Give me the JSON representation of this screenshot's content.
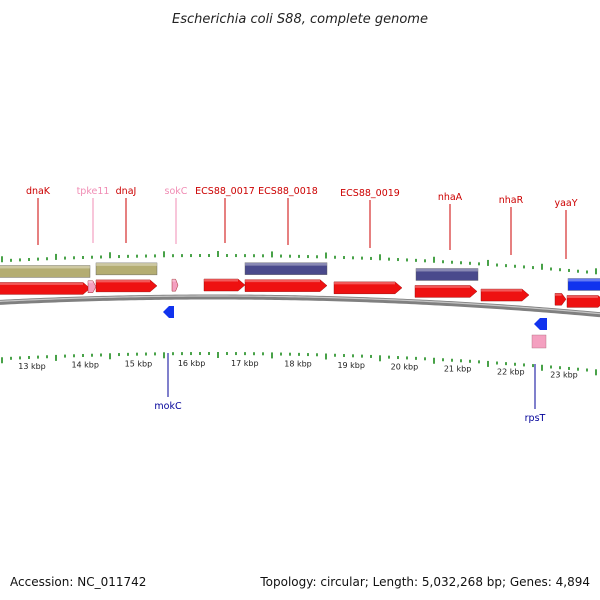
{
  "title": "Escherichia coli S88, complete genome",
  "footer": {
    "accession": "Accession: NC_011742",
    "summary": "Topology: circular; Length: 5,032,268 bp; Genes: 4,894"
  },
  "colors": {
    "forward_cds": "#ee1111",
    "reverse_cds": "#1133ee",
    "forward_gene": "#b4ad72",
    "reverse_gene": "#4a4a8c",
    "rna_feature": "#f4a0c0",
    "label_forward": "#cc0000",
    "label_rna": "#f08cb4",
    "label_reverse": "#000099",
    "tick": "#1a8a1a",
    "backbone": "#808080"
  },
  "kbp_ticks": [
    {
      "label": "13 kbp"
    },
    {
      "label": "14 kbp"
    },
    {
      "label": "15 kbp"
    },
    {
      "label": "16 kbp"
    },
    {
      "label": "17 kbp"
    },
    {
      "label": "18 kbp"
    },
    {
      "label": "19 kbp"
    },
    {
      "label": "20 kbp"
    },
    {
      "label": "21 kbp"
    },
    {
      "label": "22 kbp"
    },
    {
      "label": "23 kbp"
    }
  ],
  "gene_labels_top": [
    {
      "text": "dnaK",
      "kind": "forward"
    },
    {
      "text": "tpke11",
      "kind": "rna"
    },
    {
      "text": "dnaJ",
      "kind": "forward"
    },
    {
      "text": "sokC",
      "kind": "rna"
    },
    {
      "text": "ECS88_0017",
      "kind": "forward"
    },
    {
      "text": "ECS88_0018",
      "kind": "forward"
    },
    {
      "text": "ECS88_0019",
      "kind": "forward"
    },
    {
      "text": "nhaA",
      "kind": "forward"
    },
    {
      "text": "nhaR",
      "kind": "forward"
    },
    {
      "text": "yaaY",
      "kind": "forward"
    }
  ],
  "gene_labels_bottom": [
    {
      "text": "mokC",
      "kind": "reverse"
    },
    {
      "text": "rpsT",
      "kind": "reverse"
    }
  ]
}
